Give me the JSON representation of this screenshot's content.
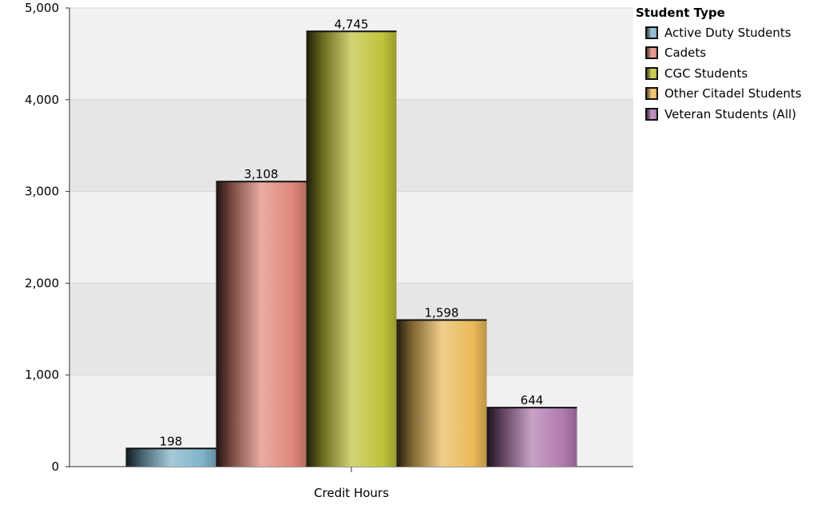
{
  "chart_data": {
    "type": "bar",
    "categories": [
      "Credit Hours"
    ],
    "xlabel": "",
    "ylabel": "",
    "ylim": [
      0,
      5000
    ],
    "yticks": [
      0,
      1000,
      2000,
      3000,
      4000,
      5000
    ],
    "ytick_labels": [
      "0",
      "1,000",
      "2,000",
      "3,000",
      "4,000",
      "5,000"
    ],
    "grid": true,
    "legend": {
      "title": "Student Type",
      "placement": "right"
    },
    "series": [
      {
        "name": "Active Duty Students",
        "values": [
          198
        ],
        "label": "198",
        "color": "#7fb3c9"
      },
      {
        "name": "Cadets",
        "values": [
          3108
        ],
        "label": "3,108",
        "color": "#e0887a"
      },
      {
        "name": "CGC Students",
        "values": [
          4745
        ],
        "label": "4,745",
        "color": "#bfc23a"
      },
      {
        "name": "Other Citadel Students",
        "values": [
          1598
        ],
        "label": "1,598",
        "color": "#eab95a"
      },
      {
        "name": "Veteran Students (All)",
        "values": [
          644
        ],
        "label": "644",
        "color": "#b07aae"
      }
    ]
  }
}
